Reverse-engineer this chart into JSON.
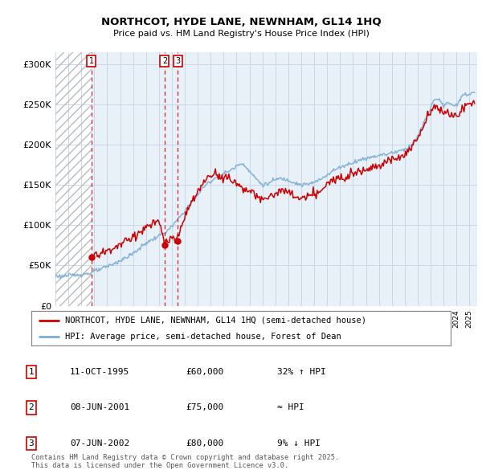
{
  "title": "NORTHCOT, HYDE LANE, NEWNHAM, GL14 1HQ",
  "subtitle": "Price paid vs. HM Land Registry's House Price Index (HPI)",
  "ylabel_ticks": [
    "£0",
    "£50K",
    "£100K",
    "£150K",
    "£200K",
    "£250K",
    "£300K"
  ],
  "ytick_values": [
    0,
    50000,
    100000,
    150000,
    200000,
    250000,
    300000
  ],
  "ylim": [
    0,
    315000
  ],
  "xlim_start": 1993.0,
  "xlim_end": 2025.6,
  "hatch_end_year": 1995.79,
  "red_color": "#cc0000",
  "blue_color": "#7dadd4",
  "hatch_edgecolor": "#bbbbbb",
  "grid_color": "#c8d8e8",
  "bg_color": "#e8f0f8",
  "sale_dates_year": [
    1995.79,
    2001.44,
    2002.44
  ],
  "sale_prices": [
    60000,
    75000,
    80000
  ],
  "sale_labels": [
    "1",
    "2",
    "3"
  ],
  "legend_entries": [
    "NORTHCOT, HYDE LANE, NEWNHAM, GL14 1HQ (semi-detached house)",
    "HPI: Average price, semi-detached house, Forest of Dean"
  ],
  "table_rows": [
    [
      "1",
      "11-OCT-1995",
      "£60,000",
      "32% ↑ HPI"
    ],
    [
      "2",
      "08-JUN-2001",
      "£75,000",
      "≈ HPI"
    ],
    [
      "3",
      "07-JUN-2002",
      "£80,000",
      "9% ↓ HPI"
    ]
  ],
  "footer": "Contains HM Land Registry data © Crown copyright and database right 2025.\nThis data is licensed under the Open Government Licence v3.0."
}
